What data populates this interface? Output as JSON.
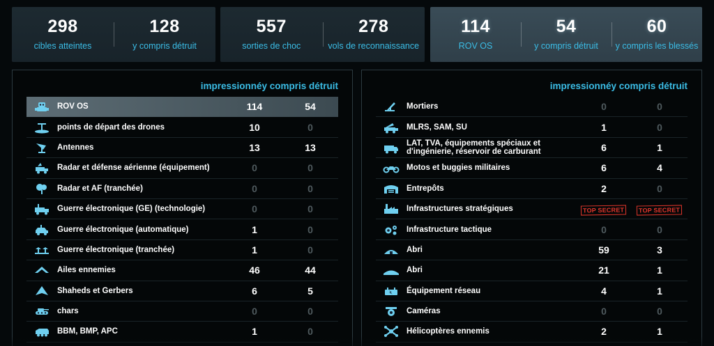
{
  "stats": {
    "card1": [
      {
        "value": "298",
        "label": "cibles atteintes"
      },
      {
        "value": "128",
        "label": "y compris détruit"
      }
    ],
    "card2": [
      {
        "value": "557",
        "label": "sorties de choc"
      },
      {
        "value": "278",
        "label": "vols de reconnaissance"
      }
    ],
    "card3": [
      {
        "value": "114",
        "label": "ROV OS"
      },
      {
        "value": "54",
        "label": "y compris détruit"
      },
      {
        "value": "60",
        "label": "y compris les blessés"
      }
    ]
  },
  "left_panel": {
    "title": "impressionnéy compris détruit",
    "rows": [
      {
        "icon": "robot-icon",
        "label": "ROV OS",
        "hit": "114",
        "destroyed": "54",
        "highlight": true
      },
      {
        "icon": "drone-launch-icon",
        "label": "points de départ des drones",
        "hit": "10",
        "destroyed": "0"
      },
      {
        "icon": "antenna-icon",
        "label": "Antennes",
        "hit": "13",
        "destroyed": "13"
      },
      {
        "icon": "radar-truck-icon",
        "label": "Radar et défense aérienne (équipement)",
        "hit": "0",
        "destroyed": "0"
      },
      {
        "icon": "radar-dish-icon",
        "label": "Radar et AF (tranchée)",
        "hit": "0",
        "destroyed": "0"
      },
      {
        "icon": "ew-truck-icon",
        "label": "Guerre électronique (GE) (technologie)",
        "hit": "0",
        "destroyed": "0"
      },
      {
        "icon": "ew-car-icon",
        "label": "Guerre électronique (automatique)",
        "hit": "1",
        "destroyed": "0"
      },
      {
        "icon": "ew-trench-icon",
        "label": "Guerre électronique (tranchée)",
        "hit": "1",
        "destroyed": "0"
      },
      {
        "icon": "wing-icon",
        "label": "Ailes ennemies",
        "hit": "46",
        "destroyed": "44"
      },
      {
        "icon": "shahed-drone-icon",
        "label": "Shaheds et Gerbers",
        "hit": "6",
        "destroyed": "5"
      },
      {
        "icon": "tank-icon",
        "label": "chars",
        "hit": "0",
        "destroyed": "0"
      },
      {
        "icon": "apc-icon",
        "label": "BBM, BMP, APC",
        "hit": "1",
        "destroyed": "0"
      }
    ]
  },
  "right_panel": {
    "title": "impressionnéy compris détruit",
    "top_secret": "TOP SECRET",
    "rows": [
      {
        "icon": "mortar-icon",
        "label": "Mortiers",
        "hit": "0",
        "destroyed": "0"
      },
      {
        "icon": "rocket-launcher-icon",
        "label": "MLRS, SAM, SU",
        "hit": "1",
        "destroyed": "0"
      },
      {
        "icon": "truck-icon",
        "label": "LAT, TVA, équipements spéciaux et d'ingénierie, réservoir de carburant",
        "hit": "6",
        "destroyed": "1"
      },
      {
        "icon": "motorcycle-icon",
        "label": "Motos et buggies militaires",
        "hit": "6",
        "destroyed": "4"
      },
      {
        "icon": "warehouse-icon",
        "label": "Entrepôts",
        "hit": "2",
        "destroyed": "0"
      },
      {
        "icon": "factory-icon",
        "label": "Infrastructures stratégiques",
        "hit": "TOP SECRET",
        "destroyed": "TOP SECRET",
        "secret": true
      },
      {
        "icon": "gears-icon",
        "label": "Infrastructure tactique",
        "hit": "0",
        "destroyed": "0"
      },
      {
        "icon": "shelter-icon",
        "label": "Abri",
        "hit": "59",
        "destroyed": "3"
      },
      {
        "icon": "bunker-icon",
        "label": "Abri",
        "hit": "21",
        "destroyed": "1"
      },
      {
        "icon": "network-equipment-icon",
        "label": "Équipement réseau",
        "hit": "4",
        "destroyed": "1"
      },
      {
        "icon": "camera-icon",
        "label": "Caméras",
        "hit": "0",
        "destroyed": "0"
      },
      {
        "icon": "helicopter-icon",
        "label": "Hélicoptères ennemis",
        "hit": "2",
        "destroyed": "1"
      }
    ]
  },
  "colors": {
    "accent": "#3bbde6",
    "background": "#05090b",
    "zero": "#4f5a5e",
    "stamp": "#e2362b"
  }
}
